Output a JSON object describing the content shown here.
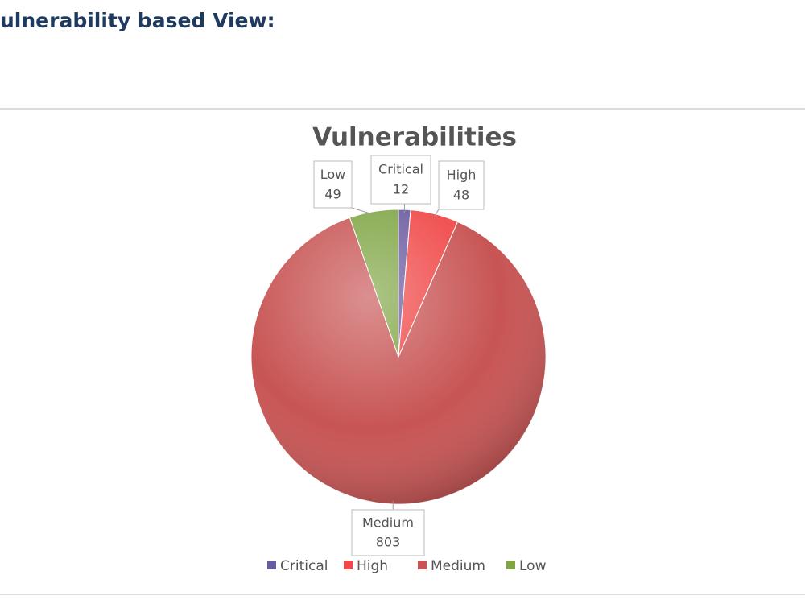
{
  "heading": "ulnerability based View:",
  "chart_data": {
    "type": "pie",
    "title": "Vulnerabilities",
    "categories": [
      "Critical",
      "High",
      "Medium",
      "Low"
    ],
    "values": [
      12,
      48,
      803,
      49
    ],
    "colors": [
      "#6a5aa0",
      "#f04848",
      "#c85454",
      "#7fa544"
    ],
    "legend": "bottom"
  }
}
